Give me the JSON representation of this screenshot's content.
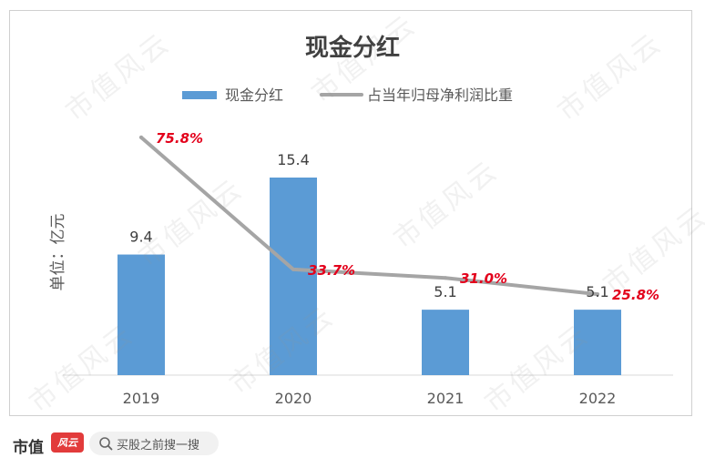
{
  "chart_data": {
    "type": "bar",
    "title": "现金分红",
    "ylabel": "单位：亿元",
    "categories": [
      "2019",
      "2020",
      "2021",
      "2022"
    ],
    "series": [
      {
        "name": "现金分红",
        "type": "bar",
        "values": [
          9.4,
          15.4,
          5.1,
          5.1
        ],
        "labels": [
          "9.4",
          "15.4",
          "5.1",
          "5.1"
        ],
        "color": "#5b9bd5"
      },
      {
        "name": "占当年归母净利润比重",
        "type": "line",
        "values": [
          75.8,
          33.7,
          31.0,
          25.8
        ],
        "labels": [
          "75.8%",
          "33.7%",
          "31.0%",
          "25.8%"
        ],
        "color": "#a5a5a5"
      }
    ],
    "bar_ylim": [
      0,
      22
    ],
    "line_ylim": [
      0,
      90
    ],
    "legend_position": "top-center",
    "grid": false,
    "line_label_color": "#e3001b"
  },
  "watermark_text": "市值风云",
  "footer": {
    "brand": "市值",
    "brand_logo": "风云",
    "search_placeholder": "买股之前搜一搜",
    "search_icon": "search-icon"
  }
}
